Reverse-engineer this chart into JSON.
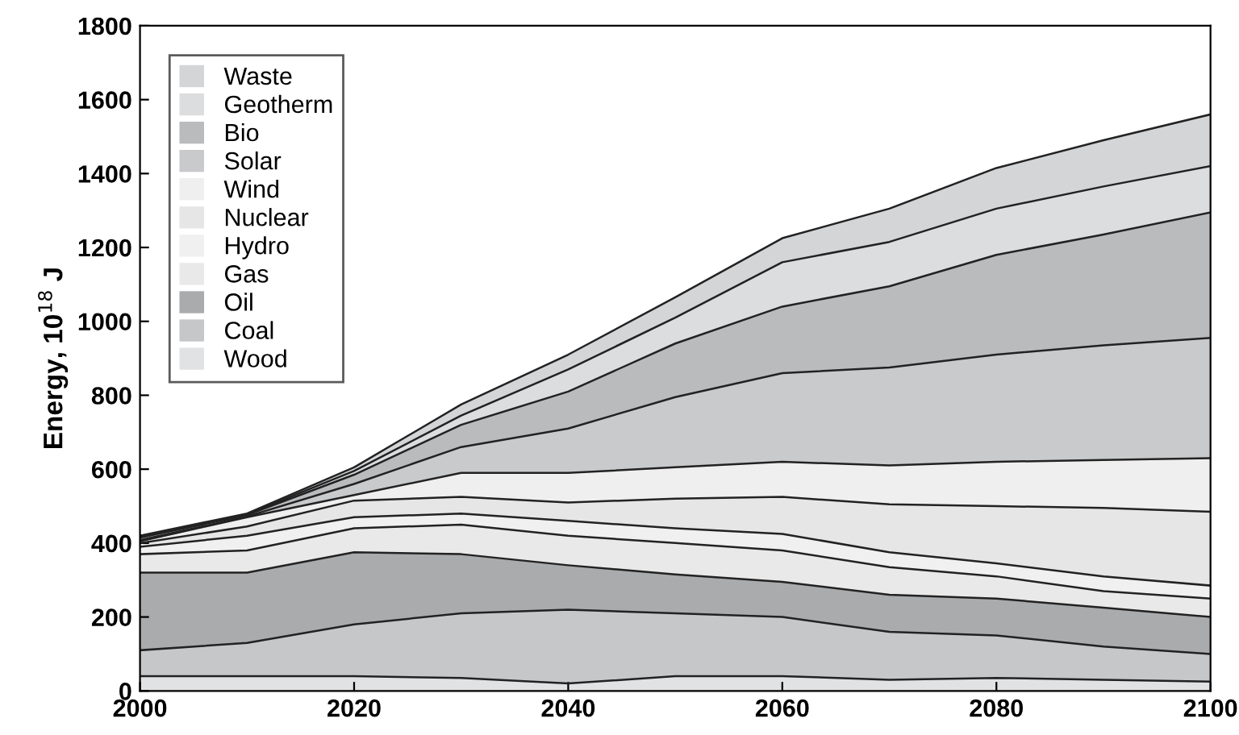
{
  "chart_data": {
    "type": "area",
    "stacked": true,
    "ylabel": "Energy, 10$^{18}$ J",
    "x": [
      2000,
      2010,
      2020,
      2030,
      2040,
      2050,
      2060,
      2070,
      2080,
      2090,
      2100
    ],
    "series": [
      {
        "name": "Wood",
        "color": "#e1e2e4",
        "values": [
          40,
          40,
          40,
          35,
          20,
          40,
          40,
          30,
          35,
          30,
          25
        ]
      },
      {
        "name": "Coal",
        "color": "#c6c7c9",
        "values": [
          70,
          90,
          140,
          175,
          200,
          170,
          160,
          130,
          115,
          90,
          75
        ]
      },
      {
        "name": "Oil",
        "color": "#aaabad",
        "values": [
          210,
          190,
          195,
          160,
          120,
          105,
          95,
          100,
          100,
          105,
          100
        ]
      },
      {
        "name": "Gas",
        "color": "#e9e9e9",
        "values": [
          50,
          60,
          65,
          80,
          80,
          85,
          85,
          75,
          60,
          45,
          50
        ]
      },
      {
        "name": "Hydro",
        "color": "#f0f0f0",
        "values": [
          20,
          40,
          30,
          30,
          40,
          40,
          45,
          40,
          35,
          40,
          35
        ]
      },
      {
        "name": "Nuclear",
        "color": "#e6e6e6",
        "values": [
          10,
          25,
          45,
          45,
          50,
          80,
          100,
          130,
          155,
          185,
          200
        ]
      },
      {
        "name": "Wind",
        "color": "#efefef",
        "values": [
          5,
          25,
          15,
          65,
          80,
          85,
          95,
          105,
          120,
          130,
          145
        ]
      },
      {
        "name": "Solar",
        "color": "#c9cacc",
        "values": [
          3,
          2,
          30,
          70,
          120,
          190,
          240,
          265,
          290,
          310,
          325
        ]
      },
      {
        "name": "Bio",
        "color": "#babbbd",
        "values": [
          7,
          4,
          25,
          60,
          100,
          145,
          180,
          220,
          270,
          300,
          340
        ]
      },
      {
        "name": "Geotherm",
        "color": "#dcdddf",
        "values": [
          2,
          2,
          10,
          25,
          60,
          70,
          120,
          120,
          125,
          130,
          125
        ]
      },
      {
        "name": "Waste",
        "color": "#d4d5d7",
        "values": [
          3,
          2,
          10,
          30,
          40,
          55,
          65,
          90,
          110,
          125,
          140
        ]
      }
    ],
    "xlim": [
      2000,
      2100
    ],
    "xticks": [
      2000,
      2020,
      2040,
      2060,
      2080,
      2100
    ],
    "ylim": [
      0,
      1800
    ],
    "yticks": [
      0,
      200,
      400,
      600,
      800,
      1000,
      1200,
      1400,
      1600,
      1800
    ],
    "grid": false,
    "legend": "top left"
  }
}
